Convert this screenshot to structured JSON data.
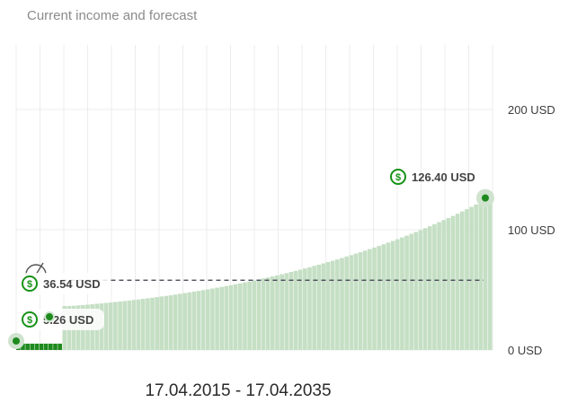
{
  "header": {
    "title": "Current income and forecast"
  },
  "footer": {
    "date_range": "17.04.2015 - 17.04.2035"
  },
  "colors": {
    "bar": "#c5dfc4",
    "current_bar": "#1e8a1e",
    "accent": "#179217",
    "target_line": "#3a3a4a",
    "grid": "#ececec"
  },
  "chart_data": {
    "type": "bar",
    "title": "",
    "xlabel": "",
    "ylabel": "",
    "x_start": "17.04.2015",
    "x_end": "17.04.2035",
    "ylim": [
      0,
      200
    ],
    "y_ticks": [
      {
        "value": 0,
        "label": "0 USD"
      },
      {
        "value": 100,
        "label": "100 USD"
      },
      {
        "value": 200,
        "label": "200 USD"
      }
    ],
    "grid": true,
    "series_description": "monthly income forecast rising from 5.26 USD (current) to 126.40 USD at end of period",
    "values": [
      5.26,
      5.26,
      5.26,
      5.26,
      5.26,
      5.26,
      5.26,
      5.26,
      5.26,
      5.26,
      36.54,
      36.6,
      36.8,
      37.1,
      37.4,
      37.7,
      38.0,
      38.4,
      38.7,
      39.1,
      39.5,
      39.9,
      40.3,
      40.7,
      41.1,
      41.6,
      42.0,
      42.5,
      43.0,
      43.5,
      44.0,
      44.5,
      45.0,
      45.6,
      46.1,
      46.7,
      47.3,
      47.9,
      48.5,
      49.1,
      49.8,
      50.4,
      51.1,
      51.8,
      52.5,
      53.2,
      53.9,
      54.7,
      55.4,
      56.2,
      57.0,
      57.8,
      58.6,
      59.5,
      60.3,
      61.2,
      62.1,
      63.0,
      63.9,
      64.9,
      65.8,
      66.8,
      67.8,
      68.8,
      69.9,
      70.9,
      72.0,
      73.1,
      74.2,
      75.3,
      76.5,
      77.7,
      78.9,
      80.1,
      81.3,
      82.6,
      83.9,
      85.2,
      86.5,
      87.9,
      89.3,
      90.7,
      92.1,
      93.6,
      95.1,
      96.6,
      98.1,
      99.7,
      101.3,
      102.9,
      104.6,
      106.3,
      108.0,
      109.7,
      111.5,
      113.3,
      115.2,
      117.1,
      119.0,
      121.0,
      123.0,
      125.0,
      126.4
    ],
    "annotations": [
      {
        "label": "5.26 USD",
        "value": 5.26,
        "marker": "current income"
      },
      {
        "label": "36.54 USD",
        "value": 36.54,
        "marker": "target"
      },
      {
        "label": "126.40 USD",
        "value": 126.4,
        "marker": "forecast end"
      }
    ],
    "target_value": 58
  }
}
